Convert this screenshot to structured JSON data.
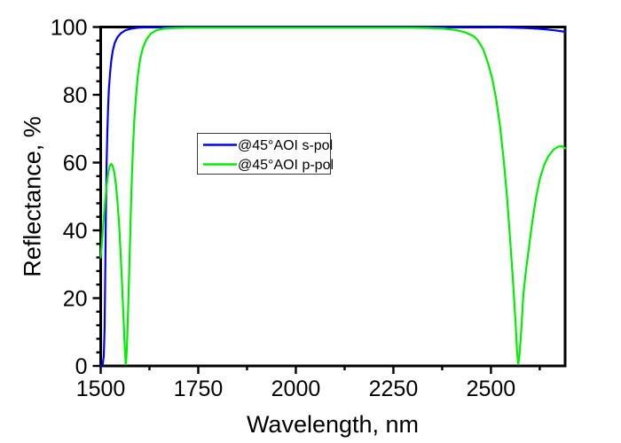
{
  "figure": {
    "background": "#ffffff",
    "frame_color": "#000000",
    "text_color": "#000000"
  },
  "chart_data": {
    "type": "line",
    "title": "",
    "xlabel": "Wavelength, nm",
    "ylabel": "Reflectance, %",
    "xlim": [
      1500,
      2690
    ],
    "ylim": [
      0,
      100
    ],
    "grid": false,
    "x_major_ticks": [
      1500,
      1750,
      2000,
      2250,
      2500
    ],
    "x_minor_ticks": [
      1625,
      1875,
      2125,
      2375,
      2625
    ],
    "y_major_ticks": [
      0,
      20,
      40,
      60,
      80,
      100
    ],
    "y_minor_step": 4,
    "legend": {
      "position": "inside-center-left",
      "entries": [
        {
          "label": "@45°AOI s-pol",
          "color": "#0000ff"
        },
        {
          "label": "@45°AOI p-pol",
          "color": "#00ee00"
        }
      ]
    },
    "series": [
      {
        "name": "@45°AOI s-pol",
        "color": "#0000ff",
        "points": [
          [
            1500,
            0
          ],
          [
            1505,
            0.3
          ],
          [
            1508,
            3
          ],
          [
            1510,
            11
          ],
          [
            1511,
            20
          ],
          [
            1512,
            31
          ],
          [
            1513,
            42
          ],
          [
            1514,
            51
          ],
          [
            1515,
            59
          ],
          [
            1517,
            69
          ],
          [
            1519,
            76.5
          ],
          [
            1521,
            81.5
          ],
          [
            1524,
            86.5
          ],
          [
            1527,
            90
          ],
          [
            1531,
            93
          ],
          [
            1536,
            95.3
          ],
          [
            1543,
            97
          ],
          [
            1552,
            98.2
          ],
          [
            1563,
            99
          ],
          [
            1577,
            99.5
          ],
          [
            1595,
            99.8
          ],
          [
            1625,
            99.95
          ],
          [
            1670,
            100
          ],
          [
            1750,
            100
          ],
          [
            1850,
            100
          ],
          [
            1950,
            100
          ],
          [
            2050,
            100
          ],
          [
            2150,
            100
          ],
          [
            2250,
            100
          ],
          [
            2350,
            100
          ],
          [
            2430,
            100
          ],
          [
            2500,
            99.95
          ],
          [
            2550,
            99.85
          ],
          [
            2590,
            99.7
          ],
          [
            2620,
            99.5
          ],
          [
            2645,
            99.25
          ],
          [
            2665,
            99
          ],
          [
            2678,
            98.8
          ],
          [
            2690,
            98.6
          ]
        ]
      },
      {
        "name": "@45°AOI p-pol",
        "color": "#00ee00",
        "points": [
          [
            1500,
            32
          ],
          [
            1503,
            36
          ],
          [
            1507,
            42.5
          ],
          [
            1511,
            48
          ],
          [
            1515,
            53
          ],
          [
            1519,
            56.8
          ],
          [
            1523,
            58.9
          ],
          [
            1527,
            59.6
          ],
          [
            1531,
            59
          ],
          [
            1535,
            57
          ],
          [
            1539,
            53.5
          ],
          [
            1543,
            48.5
          ],
          [
            1547,
            42
          ],
          [
            1551,
            33.5
          ],
          [
            1555,
            23.5
          ],
          [
            1559,
            12.5
          ],
          [
            1562,
            4.5
          ],
          [
            1564,
            0.5
          ],
          [
            1566,
            2.5
          ],
          [
            1568,
            8
          ],
          [
            1571,
            19
          ],
          [
            1574,
            32
          ],
          [
            1577,
            45
          ],
          [
            1580,
            56
          ],
          [
            1583,
            65
          ],
          [
            1586,
            72
          ],
          [
            1590,
            79
          ],
          [
            1595,
            85.5
          ],
          [
            1601,
            90.5
          ],
          [
            1608,
            93.8
          ],
          [
            1617,
            96.3
          ],
          [
            1628,
            98
          ],
          [
            1642,
            99
          ],
          [
            1660,
            99.5
          ],
          [
            1685,
            99.7
          ],
          [
            1720,
            99.8
          ],
          [
            1800,
            99.8
          ],
          [
            1900,
            99.8
          ],
          [
            2000,
            99.8
          ],
          [
            2100,
            99.8
          ],
          [
            2200,
            99.8
          ],
          [
            2300,
            99.8
          ],
          [
            2340,
            99.7
          ],
          [
            2380,
            99.5
          ],
          [
            2410,
            99.1
          ],
          [
            2435,
            98.4
          ],
          [
            2455,
            97.3
          ],
          [
            2465,
            96.3
          ],
          [
            2480,
            93.5
          ],
          [
            2492,
            89.5
          ],
          [
            2503,
            85
          ],
          [
            2513,
            79
          ],
          [
            2523,
            71
          ],
          [
            2532,
            61.5
          ],
          [
            2541,
            50
          ],
          [
            2549,
            37.5
          ],
          [
            2557,
            24
          ],
          [
            2563,
            13
          ],
          [
            2567,
            4
          ],
          [
            2570,
            0.5
          ],
          [
            2573,
            3
          ],
          [
            2578,
            11
          ],
          [
            2583,
            21
          ],
          [
            2590,
            28.5
          ],
          [
            2598,
            35.5
          ],
          [
            2606,
            42.5
          ],
          [
            2616,
            50
          ],
          [
            2626,
            55.5
          ],
          [
            2637,
            59.5
          ],
          [
            2648,
            62
          ],
          [
            2660,
            63.8
          ],
          [
            2672,
            64.7
          ],
          [
            2682,
            64.8
          ],
          [
            2690,
            64.2
          ]
        ]
      }
    ]
  }
}
